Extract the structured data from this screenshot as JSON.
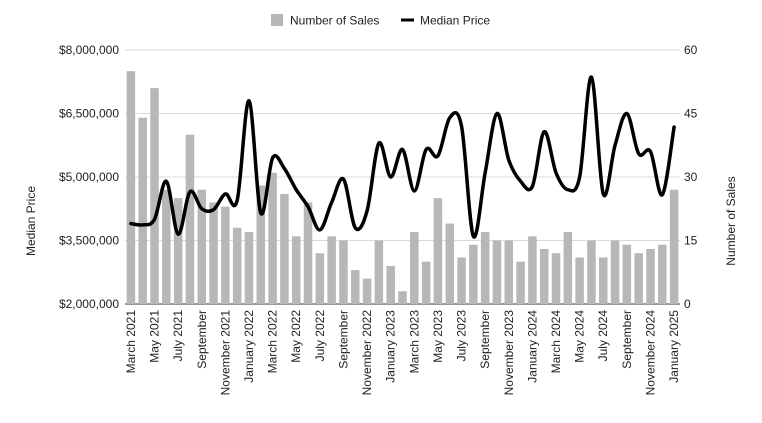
{
  "chart_data": {
    "type": "bar",
    "title": "",
    "categories": [
      "March 2021",
      "April 2021",
      "May 2021",
      "June 2021",
      "July 2021",
      "August 2021",
      "September 2021",
      "October 2021",
      "November 2021",
      "December 2021",
      "January 2022",
      "February 2022",
      "March 2022",
      "April 2022",
      "May 2022",
      "June 2022",
      "July 2022",
      "August 2022",
      "September 2022",
      "October 2022",
      "November 2022",
      "December 2022",
      "January 2023",
      "February 2023",
      "March 2023",
      "April 2023",
      "May 2023",
      "June 2023",
      "July 2023",
      "August 2023",
      "September 2023",
      "October 2023",
      "November 2023",
      "December 2023",
      "January 2024",
      "February 2024",
      "March 2024",
      "April 2024",
      "May 2024",
      "June 2024",
      "July 2024",
      "August 2024",
      "September 2024",
      "October 2024",
      "November 2024",
      "December 2024",
      "January 2025"
    ],
    "tick_labels": [
      "March 2021",
      "",
      "May 2021",
      "",
      "July 2021",
      "",
      "September",
      "",
      "November 2021",
      "",
      "January 2022",
      "",
      "March 2022",
      "",
      "May 2022",
      "",
      "July 2022",
      "",
      "September",
      "",
      "November 2022",
      "",
      "January 2023",
      "",
      "March 2023",
      "",
      "May 2023",
      "",
      "July 2023",
      "",
      "September",
      "",
      "November 2023",
      "",
      "January 2024",
      "",
      "March 2024",
      "",
      "May 2024",
      "",
      "July 2024",
      "",
      "September",
      "",
      "November 2024",
      "",
      "January 2025"
    ],
    "series": [
      {
        "name": "Number of Sales",
        "type": "bar",
        "axis": "right",
        "color": "#b7b7b7",
        "values": [
          55,
          44,
          51,
          27,
          25,
          40,
          27,
          24,
          23,
          18,
          17,
          28,
          31,
          26,
          16,
          24,
          12,
          16,
          15,
          8,
          6,
          15,
          9,
          3,
          17,
          10,
          25,
          19,
          11,
          14,
          17,
          15,
          15,
          10,
          16,
          13,
          12,
          17,
          11,
          15,
          11,
          15,
          14,
          12,
          13,
          14,
          27
        ]
      },
      {
        "name": "Median Price",
        "type": "line",
        "axis": "left",
        "color": "#000000",
        "values": [
          3900000,
          3870000,
          4000000,
          4900000,
          3650000,
          4650000,
          4250000,
          4230000,
          4600000,
          4450000,
          6800000,
          4150000,
          5450000,
          5200000,
          4700000,
          4300000,
          3750000,
          4400000,
          4950000,
          3800000,
          4200000,
          5800000,
          5000000,
          5650000,
          4670000,
          5650000,
          5500000,
          6400000,
          6200000,
          3600000,
          5100000,
          6500000,
          5400000,
          4900000,
          4780000,
          6070000,
          5100000,
          4700000,
          5000000,
          7360000,
          4600000,
          5750000,
          6500000,
          5550000,
          5600000,
          4580000,
          6180000
        ]
      }
    ],
    "y_left": {
      "label": "Median Price",
      "min": 2000000,
      "max": 8000000,
      "ticks": [
        "$2,000,000",
        "$3,500,000",
        "$5,000,000",
        "$6,500,000",
        "$8,000,000"
      ],
      "tick_values": [
        2000000,
        3500000,
        5000000,
        6500000,
        8000000
      ]
    },
    "y_right": {
      "label": "Number of Sales",
      "min": 0,
      "max": 60,
      "ticks": [
        "0",
        "15",
        "30",
        "45",
        "60"
      ],
      "tick_values": [
        0,
        15,
        30,
        45,
        60
      ]
    },
    "legend": {
      "placement": "top",
      "items": [
        {
          "label": "Number of Sales",
          "kind": "bar"
        },
        {
          "label": "Median Price",
          "kind": "line"
        }
      ]
    },
    "grid": true
  }
}
